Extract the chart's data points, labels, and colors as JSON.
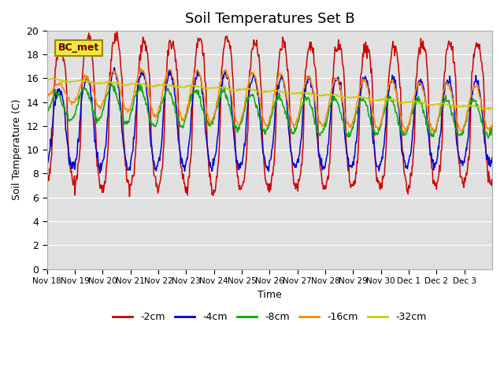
{
  "title": "Soil Temperatures Set B",
  "xlabel": "Time",
  "ylabel": "Soil Temperature (C)",
  "ylim": [
    0,
    20
  ],
  "yticks": [
    0,
    2,
    4,
    6,
    8,
    10,
    12,
    14,
    16,
    18,
    20
  ],
  "label_box_text": "BC_met",
  "bg_color": "#e0e0e0",
  "fig_color": "#ffffff",
  "line_colors": [
    "#cc0000",
    "#0000cc",
    "#00aa00",
    "#ff8800",
    "#cccc00"
  ],
  "line_labels": [
    "-2cm",
    "-4cm",
    "-8cm",
    "-16cm",
    "-32cm"
  ],
  "x_tick_labels": [
    "Nov 18",
    "Nov 19",
    "Nov 20",
    "Nov 21",
    "Nov 22",
    "Nov 23",
    "Nov 24",
    "Nov 25",
    "Nov 26",
    "Nov 27",
    "Nov 28",
    "Nov 29",
    "Nov 30",
    "Dec 1",
    "Dec 2",
    "Dec 3"
  ],
  "n_days": 16,
  "pts_per_day": 48
}
